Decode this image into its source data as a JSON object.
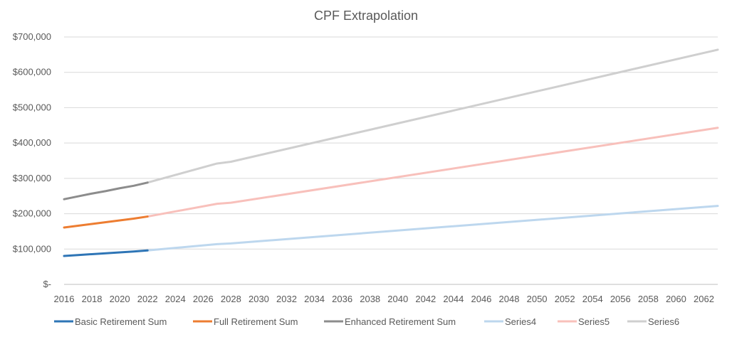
{
  "chart_data": {
    "type": "line",
    "title": "CPF Extrapolation",
    "xlabel": "",
    "ylabel": "",
    "y_ticks": [
      "$-",
      "$100,000",
      "$200,000",
      "$300,000",
      "$400,000",
      "$500,000",
      "$600,000",
      "$700,000"
    ],
    "ylim": [
      0,
      700000
    ],
    "x_ticks": [
      "2016",
      "2018",
      "2020",
      "2022",
      "2024",
      "2026",
      "2028",
      "2030",
      "2032",
      "2034",
      "2036",
      "2038",
      "2040",
      "2042",
      "2044",
      "2046",
      "2048",
      "2050",
      "2052",
      "2054",
      "2056",
      "2058",
      "2060",
      "2062"
    ],
    "xlim": [
      2016,
      2063
    ],
    "grid": true,
    "legend_position": "bottom",
    "series": [
      {
        "name": "Basic Retirement Sum",
        "color": "#2e75b6",
        "x": [
          2016,
          2017,
          2018,
          2019,
          2020,
          2021,
          2022
        ],
        "y": [
          80500,
          83000,
          85500,
          88000,
          90500,
          93000,
          96000
        ]
      },
      {
        "name": "Full Retirement Sum",
        "color": "#ed7d31",
        "x": [
          2016,
          2017,
          2018,
          2019,
          2020,
          2021,
          2022
        ],
        "y": [
          161000,
          166000,
          171000,
          176000,
          181000,
          186000,
          192000
        ]
      },
      {
        "name": "Enhanced Retirement Sum",
        "color": "#8c8c8c",
        "x": [
          2016,
          2017,
          2018,
          2019,
          2020,
          2021,
          2022
        ],
        "y": [
          241000,
          249000,
          257000,
          264000,
          272000,
          279000,
          288000
        ]
      },
      {
        "name": "Series4",
        "color": "#bdd7ee",
        "x": [
          2022,
          2027,
          2028,
          2063
        ],
        "y": [
          96000,
          114000,
          116000,
          222000
        ]
      },
      {
        "name": "Series5",
        "color": "#f8c0bb",
        "x": [
          2022,
          2027,
          2028,
          2063
        ],
        "y": [
          192000,
          228000,
          231000,
          443000
        ]
      },
      {
        "name": "Series6",
        "color": "#cfcfcf",
        "x": [
          2022,
          2027,
          2028,
          2063
        ],
        "y": [
          288000,
          342000,
          347000,
          664000
        ]
      }
    ]
  }
}
